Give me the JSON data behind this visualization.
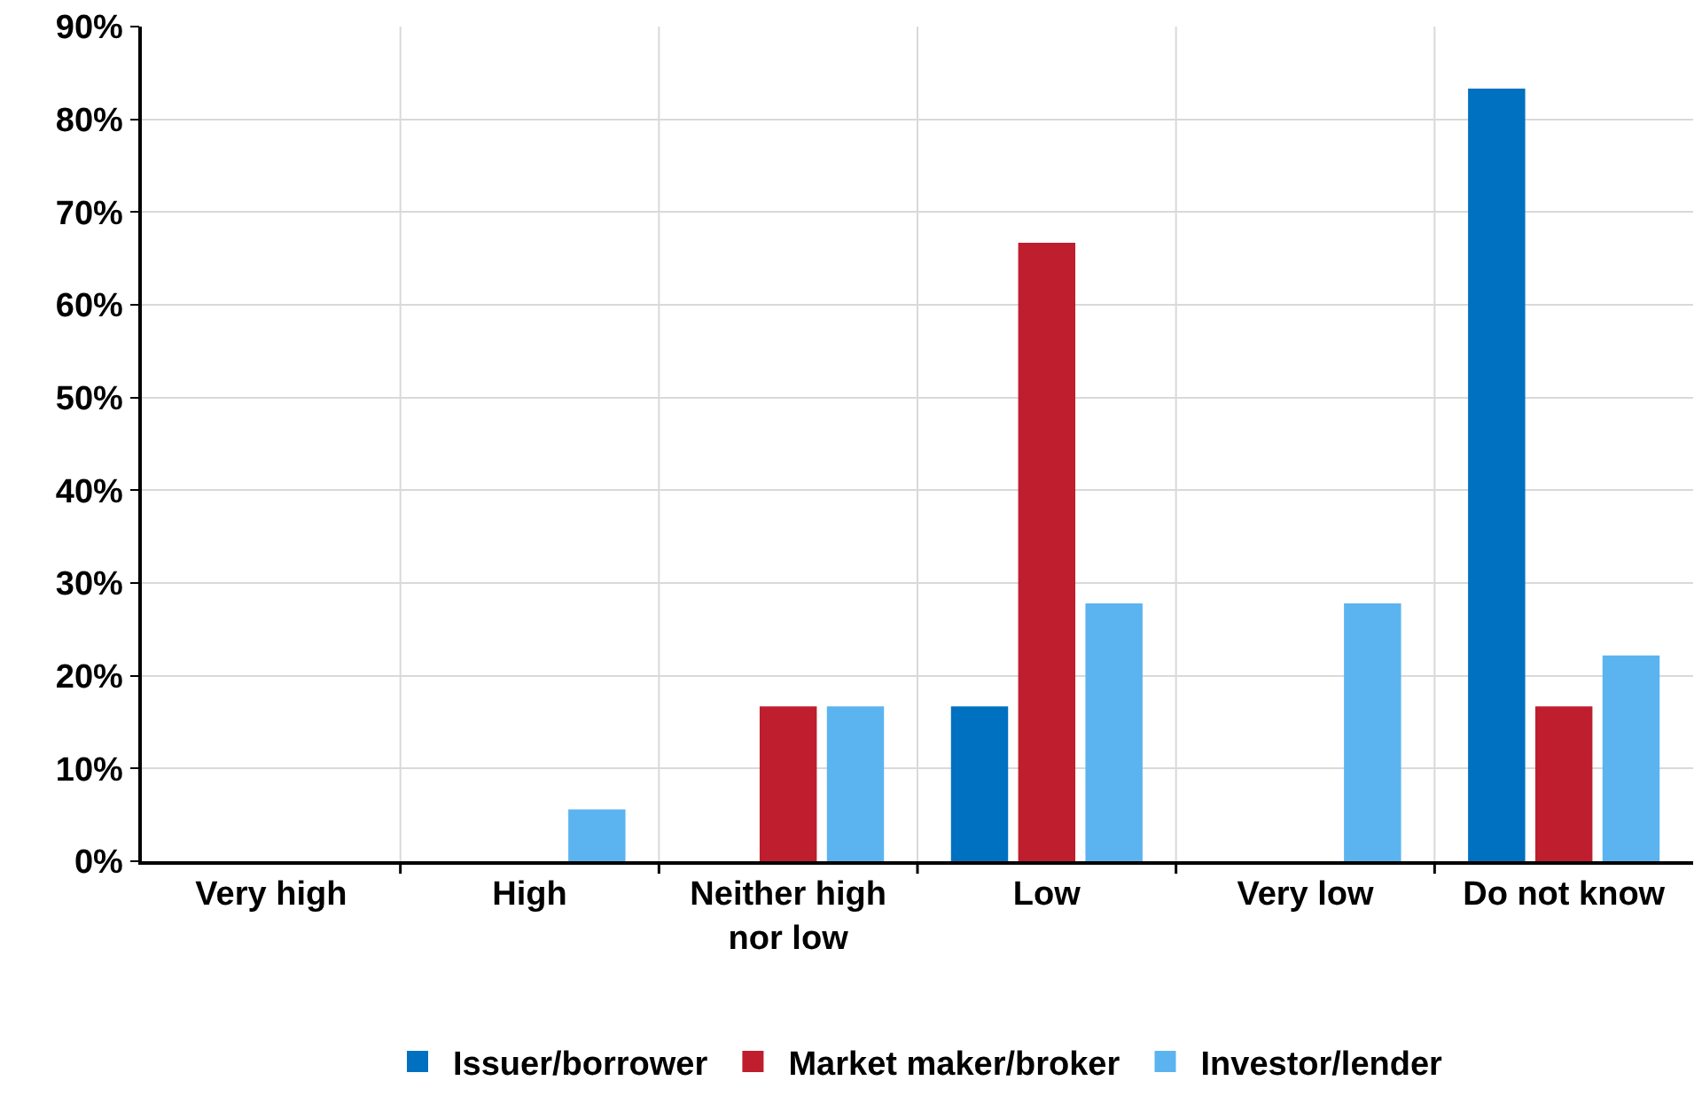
{
  "chart_data": {
    "type": "bar",
    "categories": [
      "Very high",
      "High",
      "Neither high\nnor low",
      "Low",
      "Very low",
      "Do not know"
    ],
    "series": [
      {
        "name": "Issuer/borrower",
        "color": "#0070c0",
        "values": [
          0,
          0,
          0,
          16.7,
          0,
          83.3
        ]
      },
      {
        "name": "Market maker/broker",
        "color": "#be1e2d",
        "values": [
          0,
          0,
          16.7,
          66.7,
          0,
          16.7
        ]
      },
      {
        "name": "Investor/lender",
        "color": "#5bb4f0",
        "values": [
          0,
          5.6,
          16.7,
          27.8,
          27.8,
          22.2
        ]
      }
    ],
    "ylim": [
      0,
      90
    ],
    "yticks": [
      {
        "value": 0,
        "label": "0%"
      },
      {
        "value": 10,
        "label": "10%"
      },
      {
        "value": 20,
        "label": "20%"
      },
      {
        "value": 30,
        "label": "30%"
      },
      {
        "value": 40,
        "label": "40%"
      },
      {
        "value": 50,
        "label": "50%"
      },
      {
        "value": 60,
        "label": "60%"
      },
      {
        "value": 70,
        "label": "70%"
      },
      {
        "value": 80,
        "label": "80%"
      },
      {
        "value": 90,
        "label": "90%"
      }
    ],
    "grid": true,
    "legend": "bottom"
  }
}
